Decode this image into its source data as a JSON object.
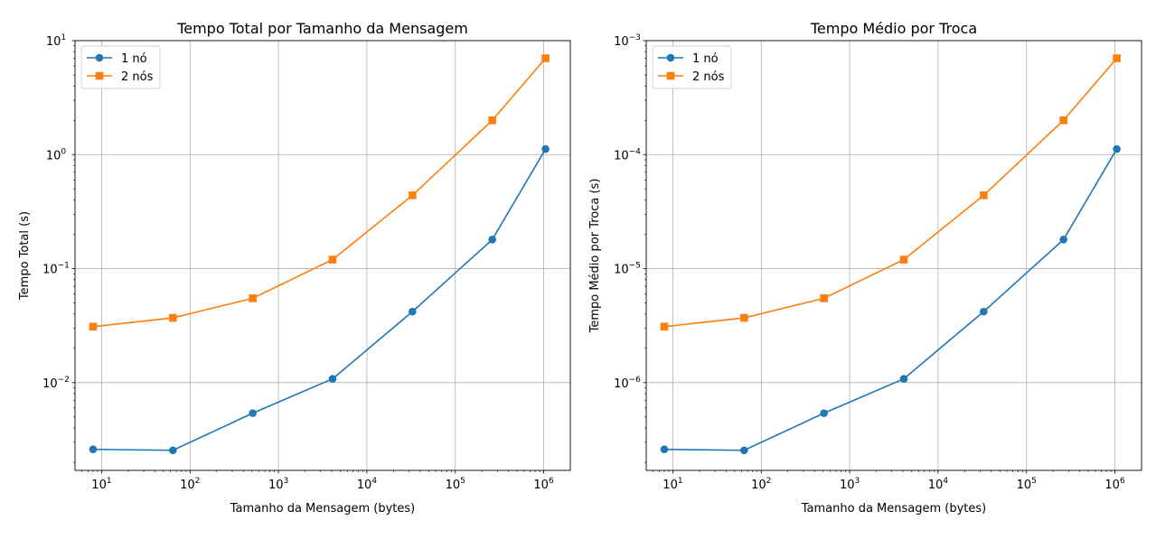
{
  "colors": {
    "series1": "#1f77b4",
    "series2": "#ff7f0e",
    "grid": "#b0b0b0"
  },
  "chart_data": [
    {
      "type": "line",
      "title": "Tempo Total por Tamanho da Mensagem",
      "xlabel": "Tamanho da Mensagem (bytes)",
      "ylabel": "Tempo Total (s)",
      "xscale": "log",
      "yscale": "log",
      "xlim": [
        5,
        2000000
      ],
      "ylim": [
        0.0017,
        10
      ],
      "grid": true,
      "legend": "top-left",
      "x": [
        8,
        64,
        512,
        4096,
        32768,
        262144,
        1048576
      ],
      "xticks": [
        {
          "value": 10,
          "base": "10",
          "exp": "1"
        },
        {
          "value": 100,
          "base": "10",
          "exp": "2"
        },
        {
          "value": 1000,
          "base": "10",
          "exp": "3"
        },
        {
          "value": 10000,
          "base": "10",
          "exp": "4"
        },
        {
          "value": 100000,
          "base": "10",
          "exp": "5"
        },
        {
          "value": 1000000,
          "base": "10",
          "exp": "6"
        }
      ],
      "yticks": [
        {
          "value": 0.01,
          "base": "10",
          "exp": "−2"
        },
        {
          "value": 0.1,
          "base": "10",
          "exp": "−1"
        },
        {
          "value": 1,
          "base": "10",
          "exp": "0"
        },
        {
          "value": 10,
          "base": "10",
          "exp": "1"
        }
      ],
      "series": [
        {
          "name": "1 nó",
          "marker": "circle",
          "values": [
            0.0026,
            0.00255,
            0.0054,
            0.0108,
            0.042,
            0.18,
            1.12
          ]
        },
        {
          "name": "2 nós",
          "marker": "square",
          "values": [
            0.031,
            0.037,
            0.055,
            0.12,
            0.44,
            2.0,
            7.0
          ]
        }
      ]
    },
    {
      "type": "line",
      "title": "Tempo Médio por Troca",
      "xlabel": "Tamanho da Mensagem (bytes)",
      "ylabel": "Tempo Médio por Troca (s)",
      "xscale": "log",
      "yscale": "log",
      "xlim": [
        5,
        2000000
      ],
      "ylim": [
        1.7e-07,
        0.001
      ],
      "grid": true,
      "legend": "top-left",
      "x": [
        8,
        64,
        512,
        4096,
        32768,
        262144,
        1048576
      ],
      "xticks": [
        {
          "value": 10,
          "base": "10",
          "exp": "1"
        },
        {
          "value": 100,
          "base": "10",
          "exp": "2"
        },
        {
          "value": 1000,
          "base": "10",
          "exp": "3"
        },
        {
          "value": 10000,
          "base": "10",
          "exp": "4"
        },
        {
          "value": 100000,
          "base": "10",
          "exp": "5"
        },
        {
          "value": 1000000,
          "base": "10",
          "exp": "6"
        }
      ],
      "yticks": [
        {
          "value": 1e-06,
          "base": "10",
          "exp": "−6"
        },
        {
          "value": 1e-05,
          "base": "10",
          "exp": "−5"
        },
        {
          "value": 0.0001,
          "base": "10",
          "exp": "−4"
        },
        {
          "value": 0.001,
          "base": "10",
          "exp": "−3"
        }
      ],
      "series": [
        {
          "name": "1 nó",
          "marker": "circle",
          "values": [
            2.6e-07,
            2.55e-07,
            5.4e-07,
            1.08e-06,
            4.2e-06,
            1.8e-05,
            0.000112
          ]
        },
        {
          "name": "2 nós",
          "marker": "square",
          "values": [
            3.1e-06,
            3.7e-06,
            5.5e-06,
            1.2e-05,
            4.4e-05,
            0.0002,
            0.0007
          ]
        }
      ]
    }
  ]
}
